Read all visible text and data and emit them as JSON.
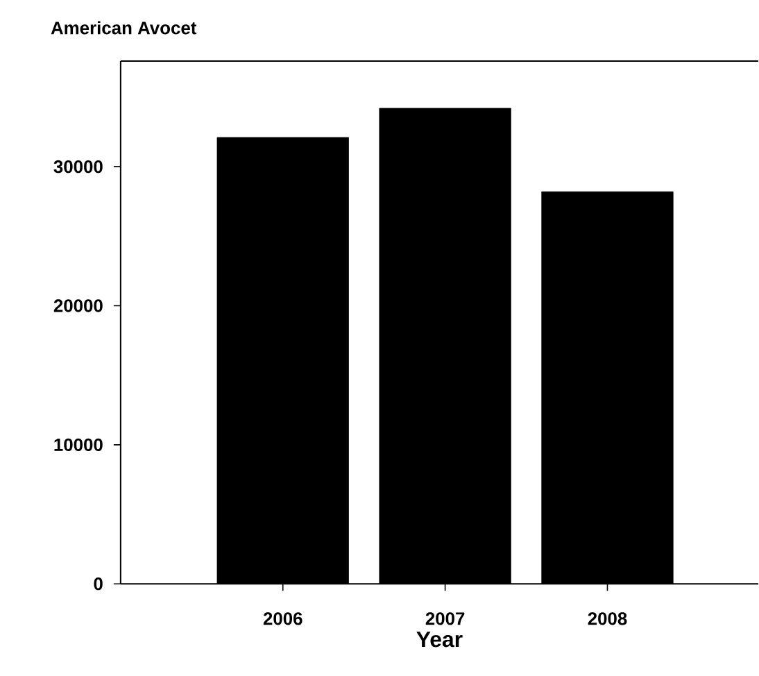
{
  "chart_data": {
    "type": "bar",
    "title": "American Avocet",
    "xlabel": "Year",
    "categories": [
      "2006",
      "2007",
      "2008"
    ],
    "values": [
      32100,
      34200,
      28200
    ],
    "color": "#000000",
    "ylim": [
      0,
      37600
    ],
    "yticks": [
      0,
      10000,
      20000,
      30000
    ]
  }
}
